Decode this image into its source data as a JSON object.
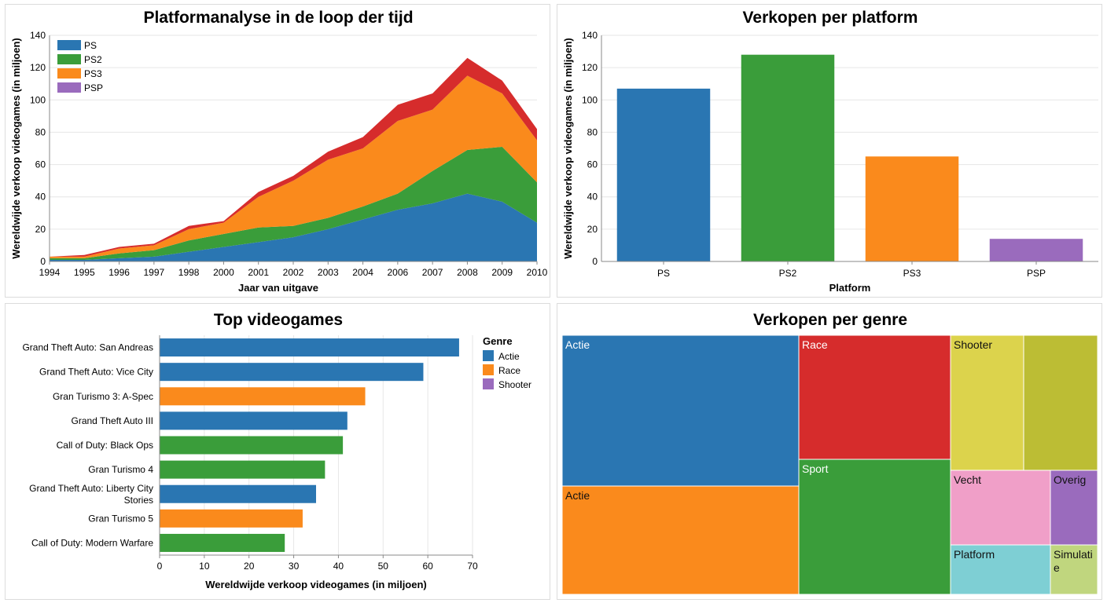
{
  "colors": {
    "blue": "#2a76b2",
    "green": "#3a9d3a",
    "orange": "#fa8a1c",
    "red": "#d62c2c",
    "purple": "#9a6bbd",
    "pink": "#f09fc8",
    "cyan": "#7ecfd4",
    "yellow": "#dcd34c",
    "olive": "#bcbd34",
    "lightgreen": "#c0d67e",
    "grid": "#e6e6e6",
    "axis": "#888888"
  },
  "chart_data": [
    {
      "type": "area",
      "stacked": true,
      "title": "Platformanalyse in de loop der tijd",
      "xlabel": "Jaar van uitgave",
      "ylabel": "Wereldwijde verkoop videogames (in miljoen)",
      "x": [
        "1994",
        "1995",
        "1996",
        "1997",
        "1998",
        "2000",
        "2001",
        "2002",
        "2003",
        "2004",
        "2006",
        "2007",
        "2008",
        "2009",
        "2010"
      ],
      "ylim": [
        0,
        140
      ],
      "yticks": [
        0,
        20,
        40,
        60,
        80,
        100,
        120,
        140
      ],
      "legend_position": "top-left",
      "series": [
        {
          "name": "PS",
          "color_key": "blue",
          "values": [
            1,
            1,
            2,
            3,
            6,
            9,
            12,
            15,
            20,
            26,
            32,
            36,
            42,
            37,
            24
          ]
        },
        {
          "name": "PS2",
          "color_key": "green",
          "values": [
            1,
            1,
            3,
            4,
            7,
            8,
            9,
            7,
            7,
            8,
            10,
            20,
            27,
            34,
            25
          ]
        },
        {
          "name": "PS3",
          "color_key": "orange",
          "values": [
            1,
            1,
            3,
            3,
            7,
            7,
            19,
            28,
            36,
            36,
            45,
            38,
            46,
            33,
            26
          ]
        },
        {
          "name": "PSP",
          "color_key": "purple",
          "values": [
            0,
            1,
            1,
            1,
            2,
            1,
            3,
            3,
            5,
            7,
            10,
            10,
            11,
            8,
            7
          ]
        }
      ],
      "legend": [
        "PS",
        "PS2",
        "PS3",
        "PSP"
      ]
    },
    {
      "type": "bar",
      "title": "Verkopen per platform",
      "xlabel": "Platform",
      "ylabel": "Wereldwijde verkoop videogames (in miljoen)",
      "categories": [
        "PS",
        "PS2",
        "PS3",
        "PSP"
      ],
      "values": [
        107,
        128,
        65,
        14
      ],
      "color_keys": [
        "blue",
        "green",
        "orange",
        "purple"
      ],
      "ylim": [
        0,
        140
      ],
      "yticks": [
        0,
        20,
        40,
        60,
        80,
        100,
        120,
        140
      ]
    },
    {
      "type": "bar",
      "orientation": "horizontal",
      "title": "Top videogames",
      "xlabel": "Wereldwijde verkoop videogames (in miljoen)",
      "categories": [
        "Grand Theft Auto: San Andreas",
        "Grand Theft Auto: Vice City",
        "Gran Turismo 3: A-Spec",
        "Grand Theft Auto III",
        "Call of Duty: Black Ops",
        "Gran Turismo 4",
        "Grand Theft Auto: Liberty City Stories",
        "Gran Turismo 5",
        "Call of Duty: Modern Warfare"
      ],
      "values": [
        67,
        59,
        46,
        42,
        41,
        37,
        35,
        32,
        28
      ],
      "color_keys": [
        "blue",
        "blue",
        "orange",
        "blue",
        "green",
        "green",
        "blue",
        "orange",
        "green"
      ],
      "xlim": [
        0,
        70
      ],
      "xticks": [
        0,
        10,
        20,
        30,
        40,
        50,
        60,
        70
      ],
      "legend_title": "Genre",
      "legend": [
        {
          "label": "Actie",
          "color_key": "blue"
        },
        {
          "label": "Race",
          "color_key": "orange"
        },
        {
          "label": "Shooter",
          "color_key": "purple"
        }
      ]
    },
    {
      "type": "treemap",
      "title": "Verkopen per genre",
      "cells": [
        {
          "label": "Actie",
          "color_key": "blue",
          "text": "light"
        },
        {
          "label": "Actie",
          "color_key": "orange",
          "text": "dark"
        },
        {
          "label": "Race",
          "color_key": "red",
          "text": "light"
        },
        {
          "label": "Sport",
          "color_key": "green",
          "text": "light"
        },
        {
          "label": "Shooter",
          "color_key": "yellow",
          "text": "dark"
        },
        {
          "label": "",
          "color_key": "olive",
          "text": "dark"
        },
        {
          "label": "Vecht",
          "color_key": "pink",
          "text": "dark"
        },
        {
          "label": "Overig",
          "color_key": "purple",
          "text": "dark"
        },
        {
          "label": "Platform",
          "color_key": "cyan",
          "text": "dark"
        },
        {
          "label": "Simulatie",
          "color_key": "lightgreen",
          "text": "dark"
        }
      ]
    }
  ]
}
